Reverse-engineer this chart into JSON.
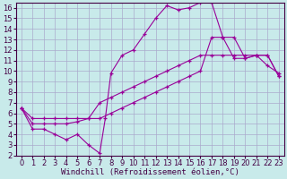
{
  "xlabel": "Windchill (Refroidissement éolien,°C)",
  "bg_color": "#c8eaea",
  "line_color": "#990099",
  "grid_color": "#aaaacc",
  "xlim": [
    -0.5,
    23.5
  ],
  "ylim": [
    2,
    16.5
  ],
  "xticks": [
    0,
    1,
    2,
    3,
    4,
    5,
    6,
    7,
    8,
    9,
    10,
    11,
    12,
    13,
    14,
    15,
    16,
    17,
    18,
    19,
    20,
    21,
    22,
    23
  ],
  "yticks": [
    2,
    3,
    4,
    5,
    6,
    7,
    8,
    9,
    10,
    11,
    12,
    13,
    14,
    15,
    16
  ],
  "series1": [
    [
      0,
      6.5
    ],
    [
      1,
      4.5
    ],
    [
      2,
      4.5
    ],
    [
      3,
      4.0
    ],
    [
      4,
      3.5
    ],
    [
      5,
      4.0
    ],
    [
      6,
      3.0
    ],
    [
      7,
      2.2
    ],
    [
      7.5,
      5.5
    ],
    [
      8,
      9.8
    ],
    [
      9,
      11.5
    ],
    [
      10,
      12.0
    ],
    [
      11,
      13.5
    ],
    [
      12,
      15.0
    ],
    [
      13,
      16.2
    ],
    [
      14,
      15.8
    ],
    [
      15,
      16.0
    ],
    [
      16,
      16.5
    ],
    [
      17,
      16.5
    ],
    [
      18,
      13.2
    ],
    [
      19,
      11.2
    ],
    [
      20,
      11.2
    ],
    [
      21,
      11.5
    ],
    [
      22,
      10.5
    ],
    [
      23,
      9.8
    ]
  ],
  "series2": [
    [
      0,
      6.5
    ],
    [
      1,
      5.0
    ],
    [
      2,
      5.0
    ],
    [
      3,
      5.0
    ],
    [
      4,
      5.0
    ],
    [
      5,
      5.2
    ],
    [
      6,
      5.5
    ],
    [
      7,
      7.0
    ],
    [
      8,
      7.5
    ],
    [
      9,
      8.0
    ],
    [
      10,
      8.5
    ],
    [
      11,
      9.0
    ],
    [
      12,
      9.5
    ],
    [
      13,
      10.0
    ],
    [
      14,
      10.5
    ],
    [
      15,
      11.0
    ],
    [
      16,
      11.5
    ],
    [
      17,
      11.5
    ],
    [
      18,
      11.5
    ],
    [
      19,
      11.5
    ],
    [
      20,
      11.5
    ],
    [
      21,
      11.5
    ],
    [
      22,
      11.5
    ],
    [
      23,
      9.5
    ]
  ],
  "series3": [
    [
      0,
      6.5
    ],
    [
      1,
      5.5
    ],
    [
      2,
      5.5
    ],
    [
      3,
      5.5
    ],
    [
      4,
      5.5
    ],
    [
      5,
      5.5
    ],
    [
      6,
      5.5
    ],
    [
      7,
      5.5
    ],
    [
      8,
      6.0
    ],
    [
      9,
      6.5
    ],
    [
      10,
      7.0
    ],
    [
      11,
      7.5
    ],
    [
      12,
      8.0
    ],
    [
      13,
      8.5
    ],
    [
      14,
      9.0
    ],
    [
      15,
      9.5
    ],
    [
      16,
      10.0
    ],
    [
      17,
      13.2
    ],
    [
      18,
      13.2
    ],
    [
      19,
      13.2
    ],
    [
      20,
      11.2
    ],
    [
      21,
      11.5
    ],
    [
      22,
      11.5
    ],
    [
      23,
      9.5
    ]
  ],
  "font_family": "monospace",
  "tick_fontsize": 6,
  "label_fontsize": 6.5
}
